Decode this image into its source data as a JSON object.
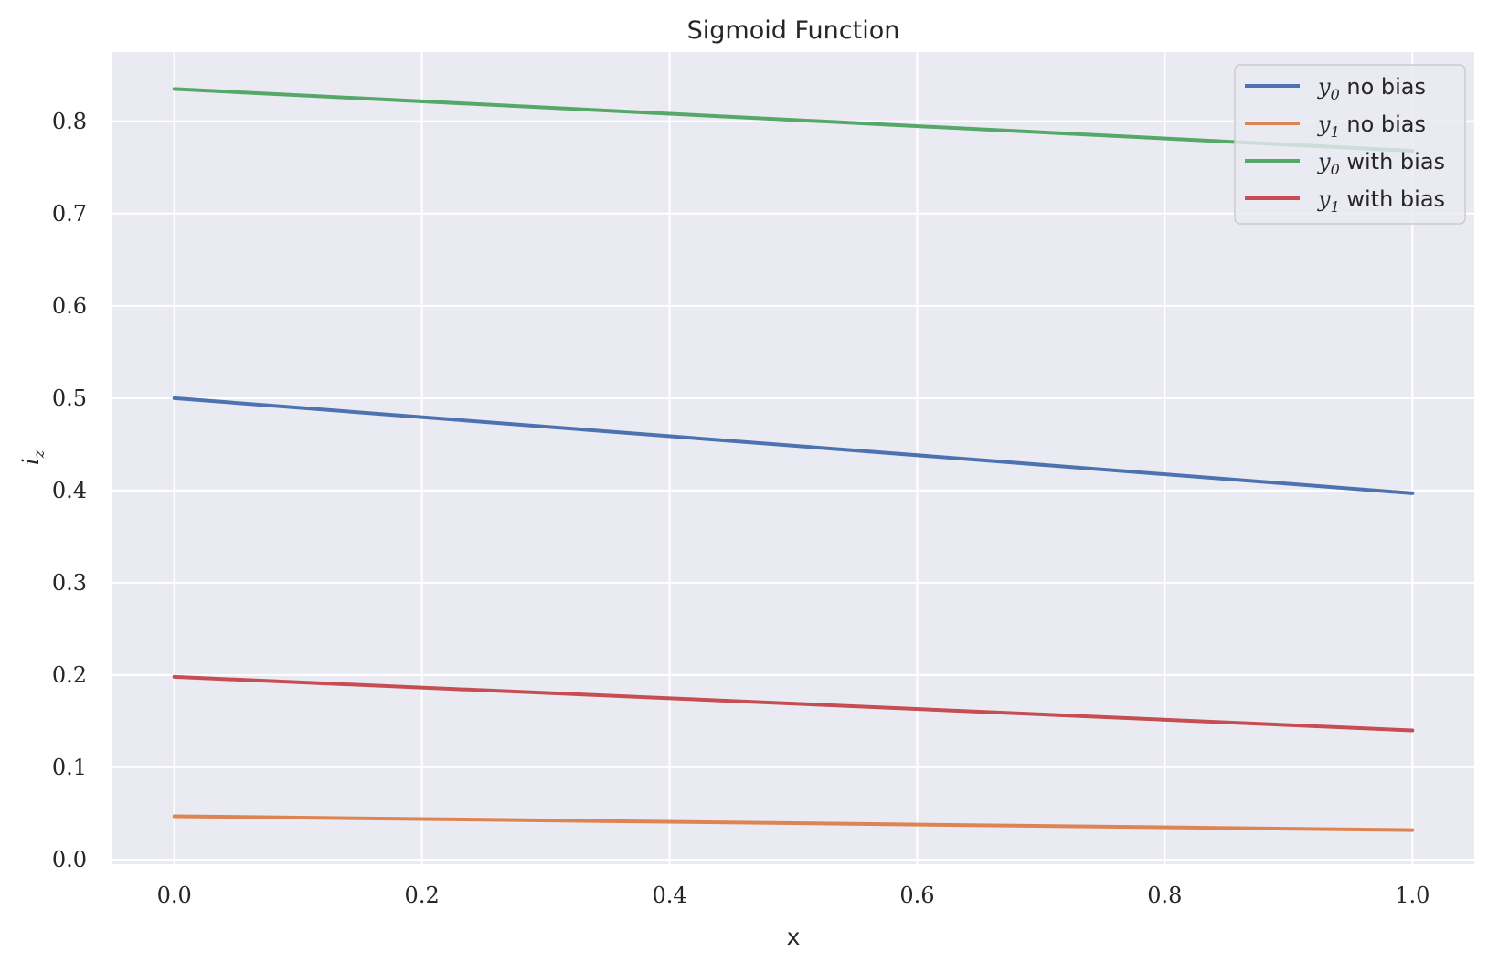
{
  "chart_data": {
    "type": "line",
    "title": "Sigmoid Function",
    "xlabel": "x",
    "ylabel": "i_z",
    "xlim": [
      -0.05,
      1.05
    ],
    "ylim": [
      -0.005,
      0.875
    ],
    "x_ticks": [
      "0.0",
      "0.2",
      "0.4",
      "0.6",
      "0.8",
      "1.0"
    ],
    "y_ticks": [
      "0.0",
      "0.1",
      "0.2",
      "0.3",
      "0.4",
      "0.5",
      "0.6",
      "0.7",
      "0.8"
    ],
    "grid": true,
    "legend_position": "top-right",
    "background": "#eaeaf2",
    "x": [
      0.0,
      1.0
    ],
    "series": [
      {
        "name": "y_0 no bias",
        "var": "y",
        "sub": "0",
        "suffix": "no bias",
        "color": "#4c72b0",
        "values": [
          0.5,
          0.397
        ]
      },
      {
        "name": "y_1 no bias",
        "var": "y",
        "sub": "1",
        "suffix": "no bias",
        "color": "#dd8452",
        "values": [
          0.047,
          0.032
        ]
      },
      {
        "name": "y_0 with bias",
        "var": "y",
        "sub": "0",
        "suffix": "with bias",
        "color": "#55a868",
        "values": [
          0.835,
          0.768
        ]
      },
      {
        "name": "y_1 with bias",
        "var": "y",
        "sub": "1",
        "suffix": "with bias",
        "color": "#c44e52",
        "values": [
          0.198,
          0.14
        ]
      }
    ]
  }
}
